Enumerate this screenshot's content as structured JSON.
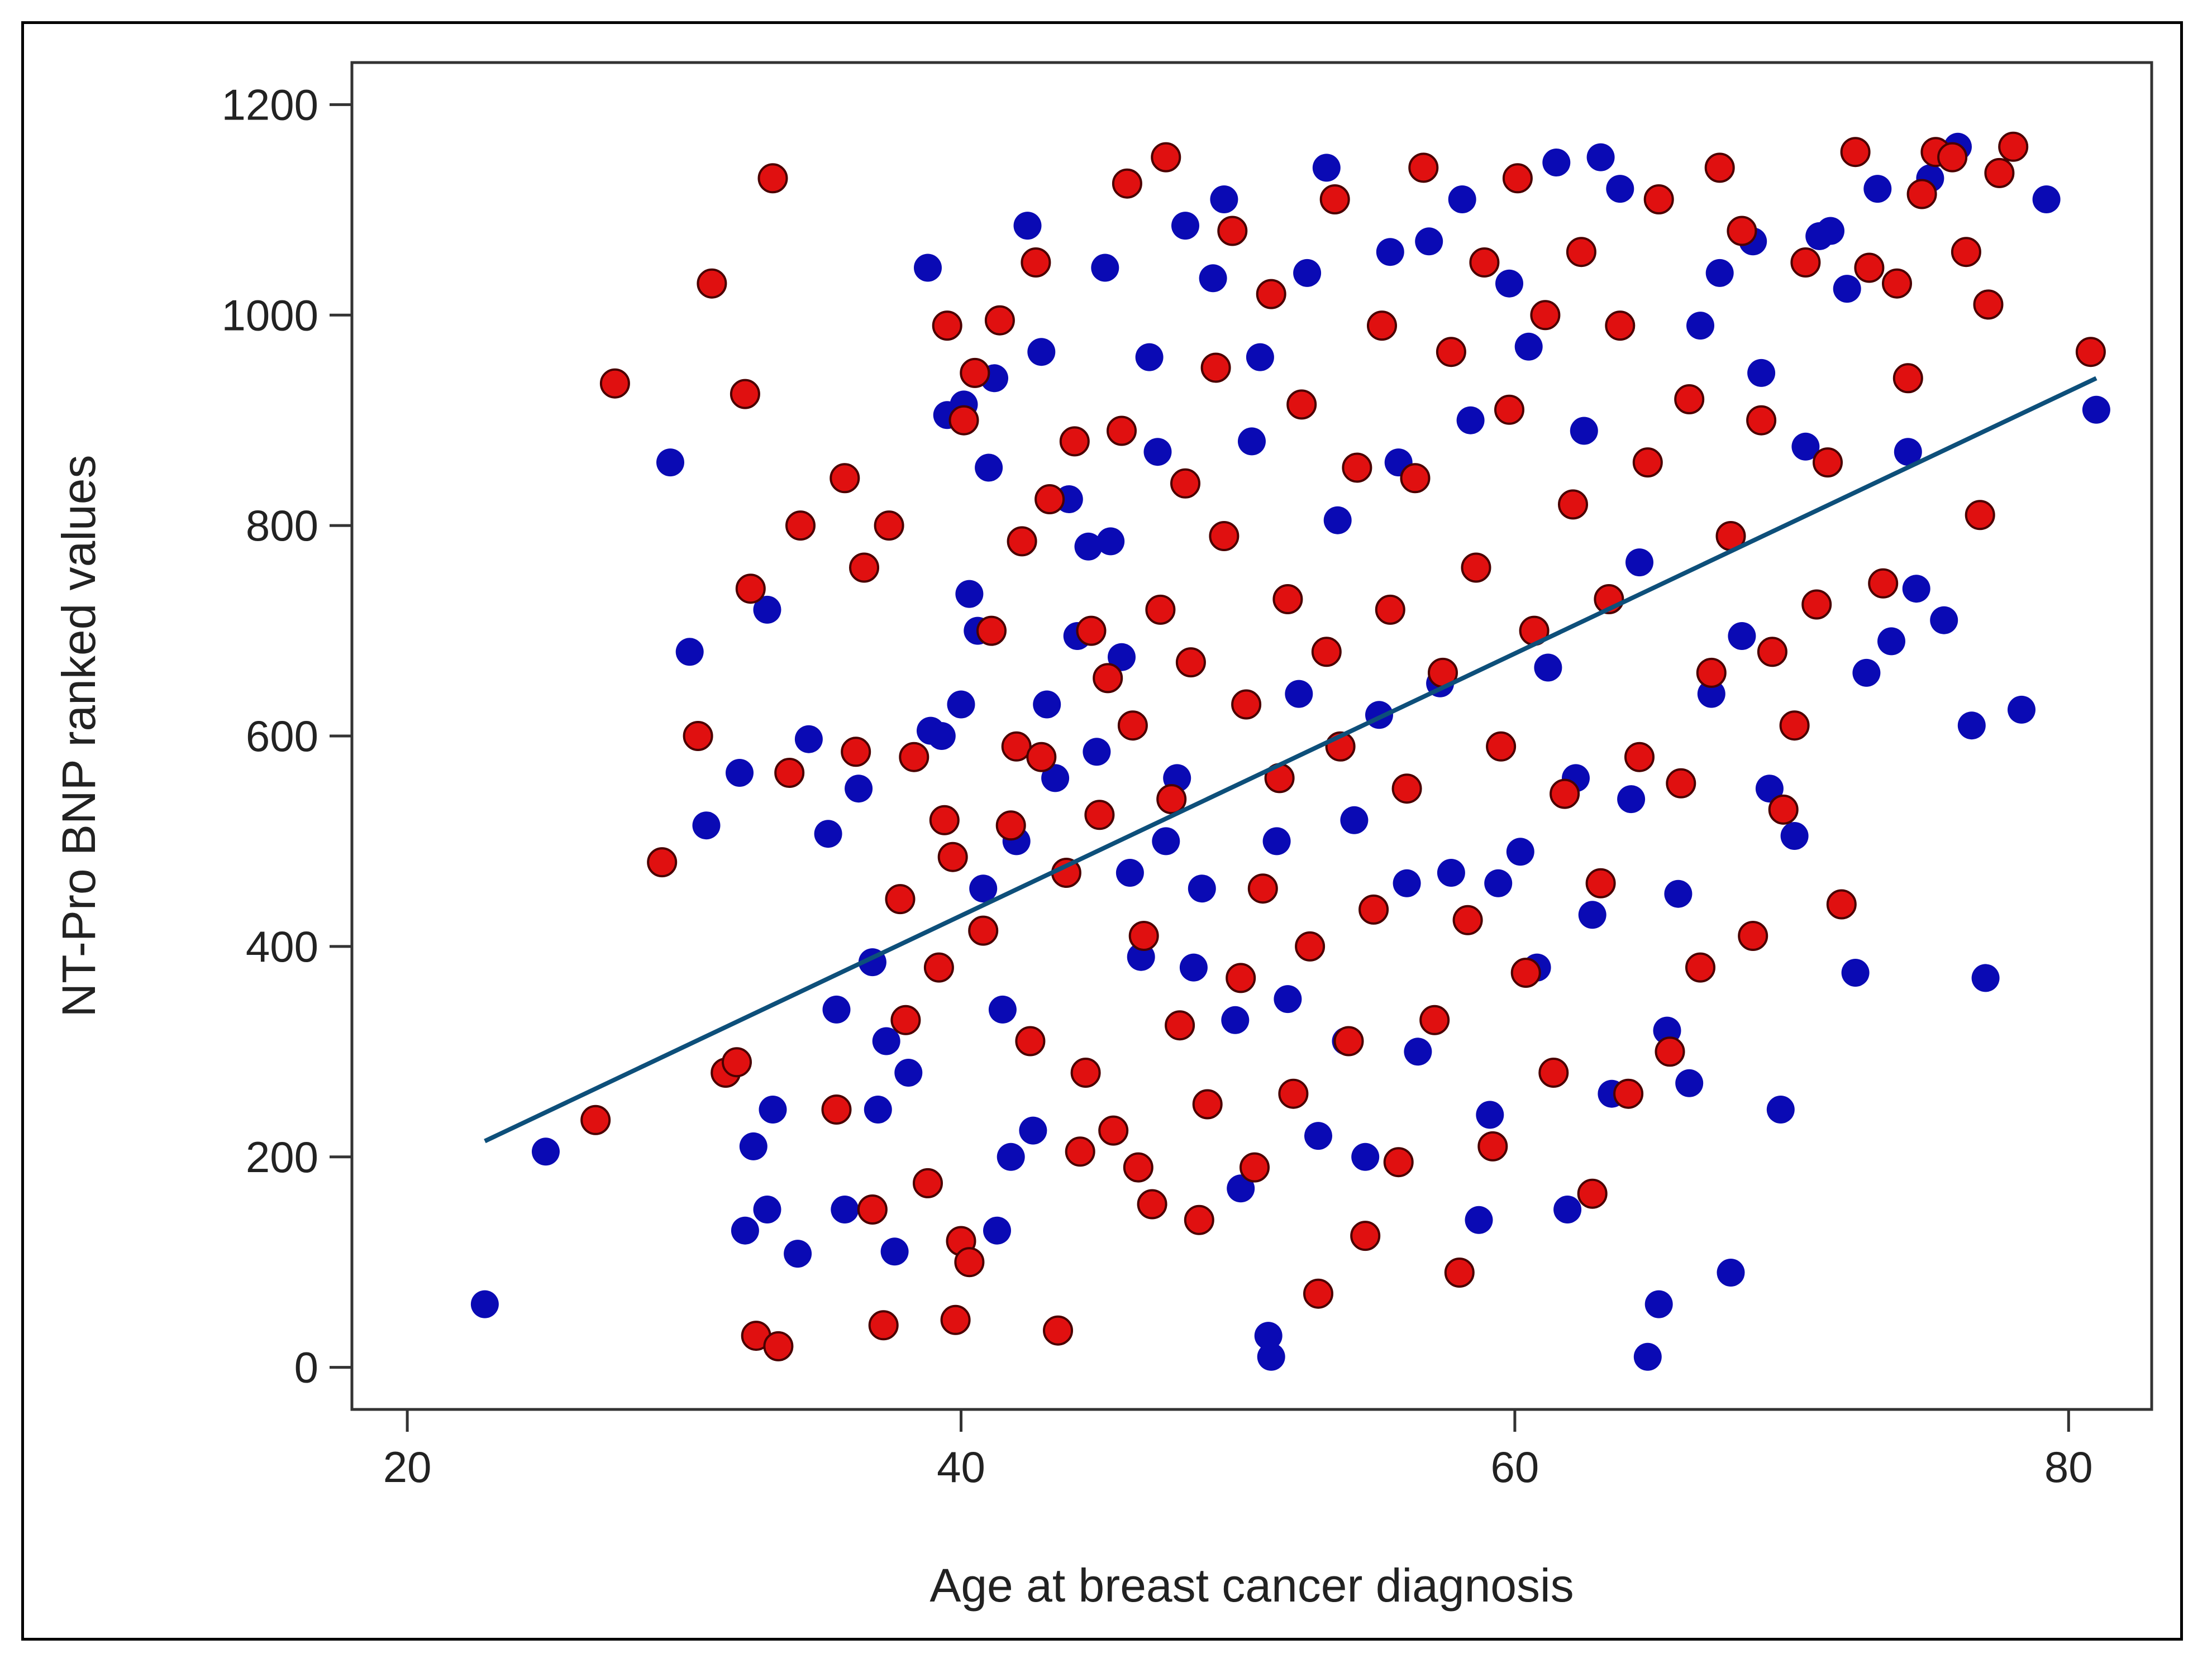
{
  "chart_data": {
    "type": "scatter",
    "title": "",
    "xlabel": "Age at breast cancer diagnosis",
    "ylabel": "NT-Pro BNP ranked values",
    "xlim": [
      18,
      83
    ],
    "ylim": [
      -40,
      1240
    ],
    "xticks": [
      20,
      40,
      60,
      80
    ],
    "yticks": [
      0,
      200,
      400,
      600,
      800,
      1000,
      1200
    ],
    "grid": false,
    "colors": {
      "series_a": "#0a0ab4",
      "series_b": "#e01010",
      "fit": "#0d4f7a"
    },
    "fit_line": {
      "x": [
        22.8,
        81.0
      ],
      "y": [
        215,
        940
      ]
    },
    "series": [
      {
        "name": "blue",
        "points": [
          [
            22.8,
            60
          ],
          [
            25,
            205
          ],
          [
            29.5,
            860
          ],
          [
            30.2,
            680
          ],
          [
            30.8,
            515
          ],
          [
            32,
            565
          ],
          [
            32.5,
            210
          ],
          [
            33,
            720
          ],
          [
            33.2,
            245
          ],
          [
            33,
            150
          ],
          [
            32.2,
            130
          ],
          [
            34.1,
            108
          ],
          [
            34.5,
            597
          ],
          [
            35.2,
            507
          ],
          [
            35.5,
            340
          ],
          [
            35.8,
            150
          ],
          [
            36.3,
            550
          ],
          [
            36.8,
            385
          ],
          [
            37,
            245
          ],
          [
            37.3,
            310
          ],
          [
            37.6,
            110
          ],
          [
            38.1,
            280
          ],
          [
            38.8,
            1045
          ],
          [
            38.9,
            605
          ],
          [
            39.3,
            600
          ],
          [
            39.5,
            905
          ],
          [
            40,
            630
          ],
          [
            40.1,
            915
          ],
          [
            40.3,
            735
          ],
          [
            40.6,
            700
          ],
          [
            41,
            855
          ],
          [
            41.2,
            940
          ],
          [
            40.8,
            455
          ],
          [
            41.3,
            130
          ],
          [
            41.5,
            340
          ],
          [
            41.8,
            200
          ],
          [
            42,
            500
          ],
          [
            42.4,
            1085
          ],
          [
            42.6,
            225
          ],
          [
            42.9,
            965
          ],
          [
            43.1,
            630
          ],
          [
            43.4,
            560
          ],
          [
            43.9,
            825
          ],
          [
            44.2,
            695
          ],
          [
            44.6,
            780
          ],
          [
            44.9,
            585
          ],
          [
            45.2,
            1045
          ],
          [
            45.4,
            785
          ],
          [
            45.8,
            675
          ],
          [
            46.1,
            470
          ],
          [
            46.5,
            390
          ],
          [
            46.8,
            960
          ],
          [
            47.1,
            870
          ],
          [
            47.4,
            500
          ],
          [
            47.8,
            560
          ],
          [
            48.1,
            1085
          ],
          [
            48.4,
            380
          ],
          [
            48.7,
            455
          ],
          [
            49.1,
            1035
          ],
          [
            49.5,
            1110
          ],
          [
            49.9,
            330
          ],
          [
            50.1,
            170
          ],
          [
            50.5,
            880
          ],
          [
            50.8,
            960
          ],
          [
            51.1,
            30
          ],
          [
            51.2,
            10
          ],
          [
            51.4,
            500
          ],
          [
            51.8,
            350
          ],
          [
            52.2,
            640
          ],
          [
            52.5,
            1040
          ],
          [
            52.9,
            220
          ],
          [
            53.2,
            1140
          ],
          [
            53.6,
            805
          ],
          [
            53.9,
            310
          ],
          [
            54.2,
            520
          ],
          [
            54.6,
            200
          ],
          [
            55.1,
            620
          ],
          [
            55.5,
            1060
          ],
          [
            55.8,
            860
          ],
          [
            56.1,
            460
          ],
          [
            56.5,
            300
          ],
          [
            56.9,
            1070
          ],
          [
            57.3,
            650
          ],
          [
            57.7,
            470
          ],
          [
            58.1,
            1110
          ],
          [
            58.4,
            900
          ],
          [
            58.7,
            140
          ],
          [
            59.1,
            240
          ],
          [
            59.4,
            460
          ],
          [
            59.8,
            1030
          ],
          [
            60.2,
            490
          ],
          [
            60.5,
            970
          ],
          [
            60.8,
            380
          ],
          [
            61.2,
            665
          ],
          [
            61.5,
            1145
          ],
          [
            61.9,
            150
          ],
          [
            62.2,
            560
          ],
          [
            62.5,
            890
          ],
          [
            62.8,
            430
          ],
          [
            63.1,
            1150
          ],
          [
            63.5,
            260
          ],
          [
            63.8,
            1120
          ],
          [
            64.2,
            540
          ],
          [
            64.5,
            765
          ],
          [
            64.8,
            10
          ],
          [
            65.2,
            60
          ],
          [
            65.5,
            320
          ],
          [
            65.9,
            450
          ],
          [
            66.3,
            270
          ],
          [
            66.7,
            990
          ],
          [
            67.1,
            640
          ],
          [
            67.4,
            1040
          ],
          [
            67.8,
            90
          ],
          [
            68.2,
            695
          ],
          [
            68.6,
            1070
          ],
          [
            68.9,
            945
          ],
          [
            69.2,
            550
          ],
          [
            69.6,
            245
          ],
          [
            70.1,
            505
          ],
          [
            70.5,
            875
          ],
          [
            71,
            1075
          ],
          [
            71.4,
            1080
          ],
          [
            72,
            1025
          ],
          [
            72.3,
            375
          ],
          [
            72.7,
            660
          ],
          [
            73.1,
            1120
          ],
          [
            73.6,
            690
          ],
          [
            74.2,
            870
          ],
          [
            74.5,
            740
          ],
          [
            75,
            1130
          ],
          [
            75.5,
            710
          ],
          [
            76,
            1160
          ],
          [
            76.5,
            610
          ],
          [
            77,
            370
          ],
          [
            78.3,
            625
          ],
          [
            79.2,
            1110
          ],
          [
            81,
            910
          ]
        ]
      },
      {
        "name": "red",
        "points": [
          [
            26.8,
            235
          ],
          [
            27.5,
            935
          ],
          [
            29.2,
            480
          ],
          [
            30.5,
            600
          ],
          [
            31,
            1030
          ],
          [
            31.5,
            280
          ],
          [
            31.9,
            290
          ],
          [
            32.2,
            925
          ],
          [
            32.4,
            740
          ],
          [
            32.6,
            30
          ],
          [
            33.2,
            1130
          ],
          [
            33.4,
            20
          ],
          [
            33.8,
            565
          ],
          [
            34.2,
            800
          ],
          [
            35.5,
            245
          ],
          [
            35.8,
            845
          ],
          [
            36.2,
            585
          ],
          [
            36.5,
            760
          ],
          [
            36.8,
            150
          ],
          [
            37.2,
            40
          ],
          [
            37.4,
            800
          ],
          [
            37.8,
            445
          ],
          [
            38,
            330
          ],
          [
            38.3,
            580
          ],
          [
            38.8,
            175
          ],
          [
            39.2,
            380
          ],
          [
            39.4,
            520
          ],
          [
            39.5,
            990
          ],
          [
            39.7,
            485
          ],
          [
            39.8,
            45
          ],
          [
            40,
            120
          ],
          [
            40.1,
            900
          ],
          [
            40.3,
            100
          ],
          [
            40.5,
            945
          ],
          [
            40.8,
            415
          ],
          [
            41.1,
            700
          ],
          [
            41.4,
            995
          ],
          [
            41.8,
            515
          ],
          [
            42,
            590
          ],
          [
            42.2,
            785
          ],
          [
            42.5,
            310
          ],
          [
            42.7,
            1050
          ],
          [
            42.9,
            580
          ],
          [
            43.2,
            825
          ],
          [
            43.5,
            35
          ],
          [
            43.8,
            470
          ],
          [
            44.1,
            880
          ],
          [
            44.3,
            205
          ],
          [
            44.5,
            280
          ],
          [
            44.7,
            700
          ],
          [
            45,
            525
          ],
          [
            45.3,
            655
          ],
          [
            45.5,
            225
          ],
          [
            45.8,
            890
          ],
          [
            46,
            1125
          ],
          [
            46.2,
            610
          ],
          [
            46.4,
            190
          ],
          [
            46.6,
            410
          ],
          [
            46.9,
            155
          ],
          [
            47.2,
            720
          ],
          [
            47.4,
            1150
          ],
          [
            47.6,
            540
          ],
          [
            47.9,
            325
          ],
          [
            48.1,
            840
          ],
          [
            48.3,
            670
          ],
          [
            48.6,
            140
          ],
          [
            48.9,
            250
          ],
          [
            49.2,
            950
          ],
          [
            49.5,
            790
          ],
          [
            49.8,
            1080
          ],
          [
            50.1,
            370
          ],
          [
            50.3,
            630
          ],
          [
            50.6,
            190
          ],
          [
            50.9,
            455
          ],
          [
            51.2,
            1020
          ],
          [
            51.5,
            560
          ],
          [
            51.8,
            730
          ],
          [
            52,
            260
          ],
          [
            52.3,
            915
          ],
          [
            52.6,
            400
          ],
          [
            52.9,
            70
          ],
          [
            53.2,
            680
          ],
          [
            53.5,
            1110
          ],
          [
            53.7,
            590
          ],
          [
            54,
            310
          ],
          [
            54.3,
            855
          ],
          [
            54.6,
            125
          ],
          [
            54.9,
            435
          ],
          [
            55.2,
            990
          ],
          [
            55.5,
            720
          ],
          [
            55.8,
            195
          ],
          [
            56.1,
            550
          ],
          [
            56.4,
            845
          ],
          [
            56.7,
            1140
          ],
          [
            57.1,
            330
          ],
          [
            57.4,
            660
          ],
          [
            57.7,
            965
          ],
          [
            58,
            90
          ],
          [
            58.3,
            425
          ],
          [
            58.6,
            760
          ],
          [
            58.9,
            1050
          ],
          [
            59.2,
            210
          ],
          [
            59.5,
            590
          ],
          [
            59.8,
            910
          ],
          [
            60.1,
            1130
          ],
          [
            60.4,
            375
          ],
          [
            60.7,
            700
          ],
          [
            61.1,
            1000
          ],
          [
            61.4,
            280
          ],
          [
            61.8,
            545
          ],
          [
            62.1,
            820
          ],
          [
            62.4,
            1060
          ],
          [
            62.8,
            165
          ],
          [
            63.1,
            460
          ],
          [
            63.4,
            730
          ],
          [
            63.8,
            990
          ],
          [
            64.1,
            260
          ],
          [
            64.5,
            580
          ],
          [
            64.8,
            860
          ],
          [
            65.2,
            1110
          ],
          [
            65.6,
            300
          ],
          [
            66,
            555
          ],
          [
            66.3,
            920
          ],
          [
            66.7,
            380
          ],
          [
            67.1,
            660
          ],
          [
            67.4,
            1140
          ],
          [
            67.8,
            790
          ],
          [
            68.2,
            1080
          ],
          [
            68.6,
            410
          ],
          [
            68.9,
            900
          ],
          [
            69.3,
            680
          ],
          [
            69.7,
            530
          ],
          [
            70.1,
            610
          ],
          [
            70.5,
            1050
          ],
          [
            70.9,
            725
          ],
          [
            71.3,
            860
          ],
          [
            71.8,
            440
          ],
          [
            72.3,
            1155
          ],
          [
            72.8,
            1045
          ],
          [
            73.3,
            745
          ],
          [
            73.8,
            1030
          ],
          [
            74.2,
            940
          ],
          [
            74.7,
            1115
          ],
          [
            75.2,
            1155
          ],
          [
            75.8,
            1150
          ],
          [
            76.3,
            1060
          ],
          [
            76.8,
            810
          ],
          [
            77.1,
            1010
          ],
          [
            77.5,
            1135
          ],
          [
            78,
            1160
          ],
          [
            80.8,
            965
          ]
        ]
      }
    ]
  }
}
